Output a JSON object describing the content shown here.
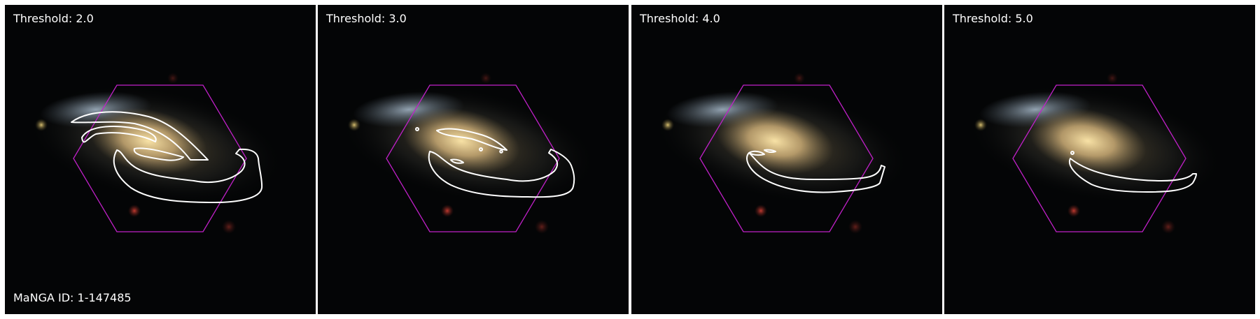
{
  "figure": {
    "panels": [
      {
        "threshold_label": "Threshold: 2.0"
      },
      {
        "threshold_label": "Threshold: 3.0"
      },
      {
        "threshold_label": "Threshold: 4.0"
      },
      {
        "threshold_label": "Threshold: 5.0"
      }
    ],
    "galaxy_id_label": "MaNGA ID: 1-147485"
  },
  "colors": {
    "background": "#040506",
    "galaxy_core": "#e6c582",
    "spiral_arm": "#9fb2c4",
    "ifu_hexagon": "#c020c8",
    "contour": "#ffffff"
  }
}
